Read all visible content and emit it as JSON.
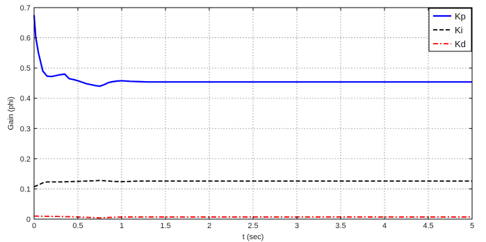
{
  "chart_data": {
    "type": "line",
    "title": "",
    "xlabel": "t (sec)",
    "ylabel": "Gain (phi)",
    "xlim": [
      0,
      5
    ],
    "ylim": [
      0,
      0.7
    ],
    "xticks": [
      0,
      0.5,
      1,
      1.5,
      2,
      2.5,
      3,
      3.5,
      4,
      4.5,
      5
    ],
    "xtick_labels": [
      "0",
      "0.5",
      "1",
      "1.5",
      "2",
      "2.5",
      "3",
      "3.5",
      "4",
      "4.5",
      "5"
    ],
    "yticks": [
      0,
      0.1,
      0.2,
      0.3,
      0.4,
      0.5,
      0.6,
      0.7
    ],
    "ytick_labels": [
      "0",
      "0.1",
      "0.2",
      "0.3",
      "0.4",
      "0.5",
      "0.6",
      "0.7"
    ],
    "grid": true,
    "legend": "top-right",
    "series": [
      {
        "name": "Kp",
        "color": "#0000ff",
        "style": "solid",
        "x": [
          0,
          0.02,
          0.05,
          0.1,
          0.15,
          0.2,
          0.25,
          0.3,
          0.35,
          0.4,
          0.45,
          0.5,
          0.55,
          0.6,
          0.65,
          0.7,
          0.75,
          0.8,
          0.85,
          0.9,
          0.95,
          1.0,
          1.1,
          1.2,
          1.3,
          1.5,
          2,
          2.5,
          3,
          3.5,
          4,
          4.5,
          5
        ],
        "y": [
          0.675,
          0.6,
          0.55,
          0.49,
          0.473,
          0.472,
          0.475,
          0.478,
          0.48,
          0.465,
          0.462,
          0.458,
          0.453,
          0.448,
          0.445,
          0.442,
          0.44,
          0.445,
          0.452,
          0.455,
          0.457,
          0.458,
          0.456,
          0.455,
          0.454,
          0.454,
          0.454,
          0.454,
          0.454,
          0.454,
          0.454,
          0.454,
          0.454
        ]
      },
      {
        "name": "Ki",
        "color": "#000000",
        "style": "dashed",
        "x": [
          0,
          0.05,
          0.1,
          0.15,
          0.2,
          0.3,
          0.4,
          0.5,
          0.6,
          0.7,
          0.75,
          0.8,
          0.9,
          1.0,
          1.1,
          1.2,
          1.5,
          2,
          2.5,
          3,
          3.5,
          4,
          4.5,
          5
        ],
        "y": [
          0.107,
          0.113,
          0.12,
          0.123,
          0.123,
          0.123,
          0.124,
          0.125,
          0.126,
          0.127,
          0.128,
          0.127,
          0.125,
          0.124,
          0.125,
          0.126,
          0.126,
          0.126,
          0.126,
          0.126,
          0.126,
          0.126,
          0.126,
          0.126
        ]
      },
      {
        "name": "Kd",
        "color": "#ff0000",
        "style": "dashdot",
        "x": [
          0,
          0.2,
          0.4,
          0.5,
          0.6,
          0.7,
          0.75,
          0.8,
          0.9,
          1.0,
          1.5,
          2,
          2.5,
          3,
          3.5,
          4,
          4.5,
          5
        ],
        "y": [
          0.01,
          0.009,
          0.008,
          0.007,
          0.006,
          0.005,
          0.004,
          0.005,
          0.006,
          0.007,
          0.007,
          0.007,
          0.007,
          0.007,
          0.007,
          0.007,
          0.007,
          0.007
        ]
      }
    ]
  }
}
